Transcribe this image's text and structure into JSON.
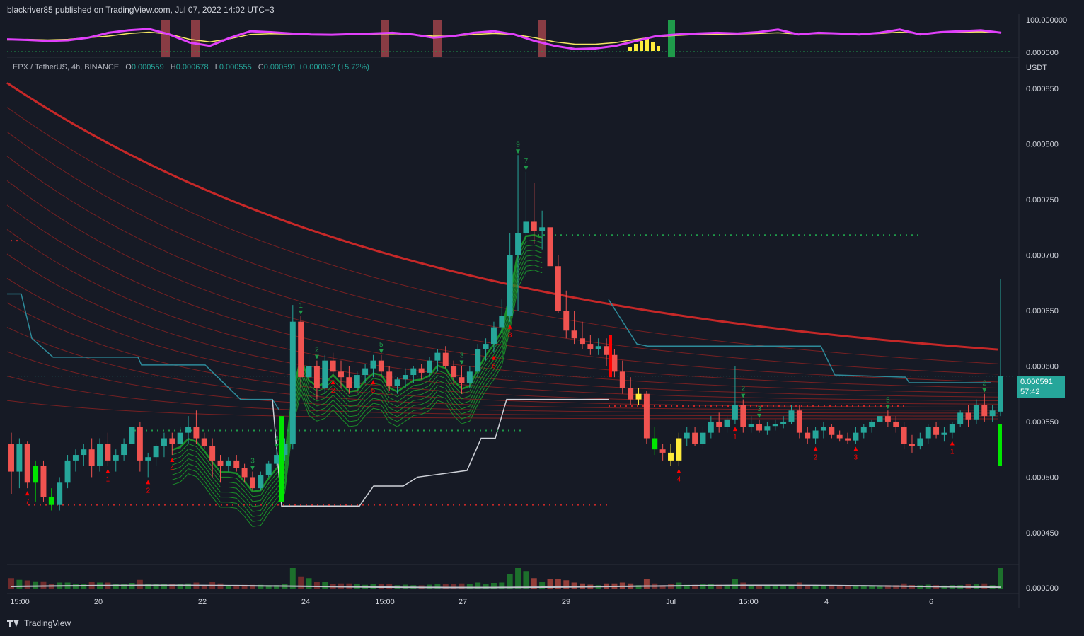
{
  "header": {
    "title": "blackriver85 published on TradingView.com, Jul 07, 2022 14:02 UTC+3"
  },
  "legend": {
    "symbol": "EPX / TetherUS, 4h, BINANCE",
    "o_label": "O",
    "o_value": "0.000559",
    "h_label": "H",
    "h_value": "0.000678",
    "l_label": "L",
    "l_value": "0.000555",
    "c_label": "C",
    "c_value": "0.000591",
    "change": "+0.000032 (+5.72%)"
  },
  "footer": {
    "brand": "TradingView"
  },
  "colors": {
    "background": "#161a25",
    "bull": "#26a69a",
    "bear": "#f05350",
    "bright_green": "#00e600",
    "signal_red": "#ff0000",
    "oscillator": "#e040fb",
    "ribbon_red": "#d32f2f",
    "ribbon_green": "#1b8f2a"
  },
  "price_tag": {
    "price": "0.000591",
    "countdown": "57:42"
  },
  "chart_data": [
    {
      "type": "line",
      "name": "oscillator-panel",
      "ylim": [
        0,
        100
      ],
      "y_ticks": [
        "100.000000",
        "0.000000"
      ],
      "series": [
        {
          "values": [
            40,
            38,
            35,
            37,
            45,
            60,
            68,
            72,
            55,
            30,
            20,
            45,
            65,
            62,
            58,
            55,
            54,
            56,
            58,
            60,
            55,
            45,
            50,
            60,
            65,
            55,
            35,
            20,
            10,
            12,
            20,
            35,
            50,
            55,
            58,
            60,
            58,
            62,
            70,
            55,
            60,
            58,
            55,
            60,
            70,
            55,
            62,
            65,
            68,
            60
          ]
        },
        {
          "values": [
            38,
            40,
            38,
            40,
            45,
            50,
            58,
            62,
            56,
            40,
            32,
            42,
            55,
            57,
            56,
            55,
            55,
            55,
            56,
            57,
            55,
            50,
            50,
            55,
            58,
            55,
            45,
            32,
            25,
            25,
            30,
            40,
            48,
            52,
            55,
            56,
            56,
            58,
            60,
            56,
            58,
            57,
            56,
            58,
            62,
            58,
            60,
            62,
            63,
            60
          ]
        }
      ]
    },
    {
      "type": "candlestick",
      "name": "price-panel",
      "unit": "USDT",
      "ylim": [
        0.00042,
        0.00088
      ],
      "y_ticks": [
        "0.000850",
        "0.000800",
        "0.000750",
        "0.000700",
        "0.000650",
        "0.000600",
        "0.000550",
        "0.000500",
        "0.000450"
      ],
      "x_ticks": [
        "15:00",
        "20",
        "22",
        "24",
        "15:00",
        "27",
        "29",
        "Jul",
        "15:00",
        "4",
        "6"
      ],
      "candles": [
        [
          0.00053,
          0.00054,
          0.000485,
          0.000505
        ],
        [
          0.000505,
          0.000535,
          0.00049,
          0.00053
        ],
        [
          0.00053,
          0.000532,
          0.00049,
          0.000495
        ],
        [
          0.000495,
          0.000515,
          0.000478,
          0.00051
        ],
        [
          0.00051,
          0.000515,
          0.000478,
          0.000482
        ],
        [
          0.000482,
          0.00049,
          0.00047,
          0.000475
        ],
        [
          0.000475,
          0.0005,
          0.00047,
          0.000495
        ],
        [
          0.000495,
          0.00052,
          0.00049,
          0.000515
        ],
        [
          0.000515,
          0.000525,
          0.000505,
          0.00052
        ],
        [
          0.00052,
          0.00053,
          0.00051,
          0.000525
        ],
        [
          0.000525,
          0.000535,
          0.0005,
          0.00051
        ],
        [
          0.00051,
          0.000535,
          0.000505,
          0.00053
        ],
        [
          0.00053,
          0.00054,
          0.00051,
          0.000515
        ],
        [
          0.000515,
          0.000525,
          0.000505,
          0.00052
        ],
        [
          0.00052,
          0.000535,
          0.000515,
          0.00053
        ],
        [
          0.00053,
          0.000548,
          0.00052,
          0.000545
        ],
        [
          0.000545,
          0.00055,
          0.000505,
          0.000515
        ],
        [
          0.000515,
          0.000522,
          0.0005,
          0.000518
        ],
        [
          0.000518,
          0.00053,
          0.00051,
          0.000528
        ],
        [
          0.000528,
          0.00054,
          0.000518,
          0.000535
        ],
        [
          0.000535,
          0.00054,
          0.00052,
          0.00053
        ],
        [
          0.00053,
          0.000545,
          0.000525,
          0.00054
        ],
        [
          0.00054,
          0.000555,
          0.00053,
          0.000545
        ],
        [
          0.000545,
          0.00056,
          0.00053,
          0.000535
        ],
        [
          0.000535,
          0.00054,
          0.000525,
          0.000528
        ],
        [
          0.000528,
          0.000535,
          0.0005,
          0.000515
        ],
        [
          0.000515,
          0.00052,
          0.000495,
          0.00051
        ],
        [
          0.00051,
          0.000518,
          0.000505,
          0.000515
        ],
        [
          0.000515,
          0.00052,
          0.000505,
          0.000508
        ],
        [
          0.000508,
          0.000512,
          0.000495,
          0.0005
        ],
        [
          0.0005,
          0.000505,
          0.000488,
          0.00049
        ],
        [
          0.00049,
          0.000505,
          0.000488,
          0.000502
        ],
        [
          0.000502,
          0.000515,
          0.0005,
          0.000512
        ],
        [
          0.000512,
          0.000525,
          0.00051,
          0.00052
        ],
        [
          0.00052,
          0.000535,
          0.000515,
          0.00053
        ],
        [
          0.00053,
          0.000655,
          0.000525,
          0.00064
        ],
        [
          0.00064,
          0.000645,
          0.00058,
          0.00059
        ],
        [
          0.00059,
          0.00061,
          0.000555,
          0.0006
        ],
        [
          0.0006,
          0.000605,
          0.00057,
          0.00058
        ],
        [
          0.00058,
          0.00061,
          0.000575,
          0.000605
        ],
        [
          0.000605,
          0.000612,
          0.00059,
          0.000595
        ],
        [
          0.000595,
          0.000605,
          0.00058,
          0.00059
        ],
        [
          0.00059,
          0.0006,
          0.000575,
          0.00058
        ],
        [
          0.00058,
          0.000595,
          0.000575,
          0.000592
        ],
        [
          0.000592,
          0.000602,
          0.000585,
          0.000598
        ],
        [
          0.000598,
          0.00061,
          0.00059,
          0.000605
        ],
        [
          0.000605,
          0.00061,
          0.00059,
          0.000595
        ],
        [
          0.000595,
          0.0006,
          0.000578,
          0.000582
        ],
        [
          0.000582,
          0.00059,
          0.000575,
          0.000588
        ],
        [
          0.000588,
          0.000598,
          0.00058,
          0.000592
        ],
        [
          0.000592,
          0.0006,
          0.000585,
          0.000598
        ],
        [
          0.000598,
          0.000602,
          0.000588,
          0.000594
        ],
        [
          0.000594,
          0.000608,
          0.00059,
          0.000605
        ],
        [
          0.000605,
          0.000615,
          0.000595,
          0.000612
        ],
        [
          0.000612,
          0.000618,
          0.000598,
          0.0006
        ],
        [
          0.0006,
          0.000605,
          0.000585,
          0.00059
        ],
        [
          0.00059,
          0.0006,
          0.000575,
          0.000585
        ],
        [
          0.000585,
          0.0006,
          0.00058,
          0.000595
        ],
        [
          0.000595,
          0.00062,
          0.00059,
          0.000615
        ],
        [
          0.000615,
          0.000625,
          0.000605,
          0.00062
        ],
        [
          0.00062,
          0.00064,
          0.000612,
          0.000635
        ],
        [
          0.000635,
          0.00066,
          0.00063,
          0.000645
        ],
        [
          0.000645,
          0.00072,
          0.00064,
          0.0007
        ],
        [
          0.0007,
          0.00079,
          0.00065,
          0.00072
        ],
        [
          0.00072,
          0.000775,
          0.00068,
          0.00073
        ],
        [
          0.00073,
          0.000765,
          0.00071,
          0.000722
        ],
        [
          0.000722,
          0.00074,
          0.000705,
          0.000725
        ],
        [
          0.000725,
          0.00073,
          0.00068,
          0.00069
        ],
        [
          0.00069,
          0.0007,
          0.000648,
          0.00065
        ],
        [
          0.00065,
          0.000668,
          0.000625,
          0.000632
        ],
        [
          0.000632,
          0.00065,
          0.00062,
          0.000625
        ],
        [
          0.000625,
          0.00064,
          0.000615,
          0.00062
        ],
        [
          0.00062,
          0.000628,
          0.00061,
          0.000615
        ],
        [
          0.000615,
          0.000625,
          0.00061,
          0.000618
        ],
        [
          0.000618,
          0.000625,
          0.0006,
          0.00061
        ],
        [
          0.00061,
          0.000615,
          0.00059,
          0.000595
        ],
        [
          0.000595,
          0.000605,
          0.000575,
          0.00058
        ],
        [
          0.00058,
          0.00059,
          0.000565,
          0.00057
        ],
        [
          0.00057,
          0.00058,
          0.000565,
          0.000575
        ],
        [
          0.000575,
          0.000578,
          0.00053,
          0.000535
        ],
        [
          0.000535,
          0.000545,
          0.00052,
          0.000525
        ],
        [
          0.000525,
          0.00053,
          0.000515,
          0.000522
        ],
        [
          0.000522,
          0.00053,
          0.00051,
          0.000515
        ],
        [
          0.000515,
          0.00054,
          0.00051,
          0.000535
        ],
        [
          0.000535,
          0.000545,
          0.000528,
          0.00054
        ],
        [
          0.00054,
          0.000545,
          0.000528,
          0.00053
        ],
        [
          0.00053,
          0.000545,
          0.000525,
          0.00054
        ],
        [
          0.00054,
          0.000555,
          0.000535,
          0.00055
        ],
        [
          0.00055,
          0.000558,
          0.00054,
          0.000545
        ],
        [
          0.000545,
          0.000555,
          0.00054,
          0.000552
        ],
        [
          0.000552,
          0.0006,
          0.000548,
          0.000565
        ],
        [
          0.000565,
          0.00057,
          0.00054,
          0.000545
        ],
        [
          0.000545,
          0.000555,
          0.00054,
          0.000548
        ],
        [
          0.000548,
          0.000552,
          0.00054,
          0.000542
        ],
        [
          0.000542,
          0.00055,
          0.000538,
          0.000546
        ],
        [
          0.000546,
          0.000552,
          0.000542,
          0.000548
        ],
        [
          0.000548,
          0.000555,
          0.000544,
          0.00055
        ],
        [
          0.00055,
          0.000565,
          0.000548,
          0.00056
        ],
        [
          0.00056,
          0.000565,
          0.000535,
          0.00054
        ],
        [
          0.00054,
          0.000545,
          0.00053,
          0.000535
        ],
        [
          0.000535,
          0.000545,
          0.00053,
          0.000542
        ],
        [
          0.000542,
          0.00055,
          0.000535,
          0.000545
        ],
        [
          0.000545,
          0.000548,
          0.000535,
          0.000538
        ],
        [
          0.000538,
          0.000542,
          0.000532,
          0.000535
        ],
        [
          0.000535,
          0.00054,
          0.00053,
          0.000533
        ],
        [
          0.000533,
          0.000545,
          0.00053,
          0.00054
        ],
        [
          0.00054,
          0.000548,
          0.000535,
          0.000545
        ],
        [
          0.000545,
          0.000552,
          0.00054,
          0.00055
        ],
        [
          0.00055,
          0.000558,
          0.000545,
          0.000555
        ],
        [
          0.000555,
          0.00056,
          0.000545,
          0.00055
        ],
        [
          0.00055,
          0.000555,
          0.00054,
          0.000545
        ],
        [
          0.000545,
          0.00055,
          0.000525,
          0.00053
        ],
        [
          0.00053,
          0.000538,
          0.000522,
          0.000528
        ],
        [
          0.000528,
          0.00054,
          0.000525,
          0.000535
        ],
        [
          0.000535,
          0.000548,
          0.00053,
          0.000545
        ],
        [
          0.000545,
          0.00055,
          0.000535,
          0.000538
        ],
        [
          0.000538,
          0.000545,
          0.000532,
          0.00054
        ],
        [
          0.00054,
          0.00055,
          0.000535,
          0.000548
        ],
        [
          0.000548,
          0.00056,
          0.000545,
          0.000558
        ],
        [
          0.000558,
          0.000565,
          0.000545,
          0.000552
        ],
        [
          0.000552,
          0.00057,
          0.000548,
          0.000565
        ],
        [
          0.000565,
          0.000575,
          0.00055,
          0.000555
        ],
        [
          0.000555,
          0.000565,
          0.00055,
          0.00056
        ],
        [
          0.000559,
          0.000678,
          0.000555,
          0.000591
        ]
      ]
    }
  ]
}
